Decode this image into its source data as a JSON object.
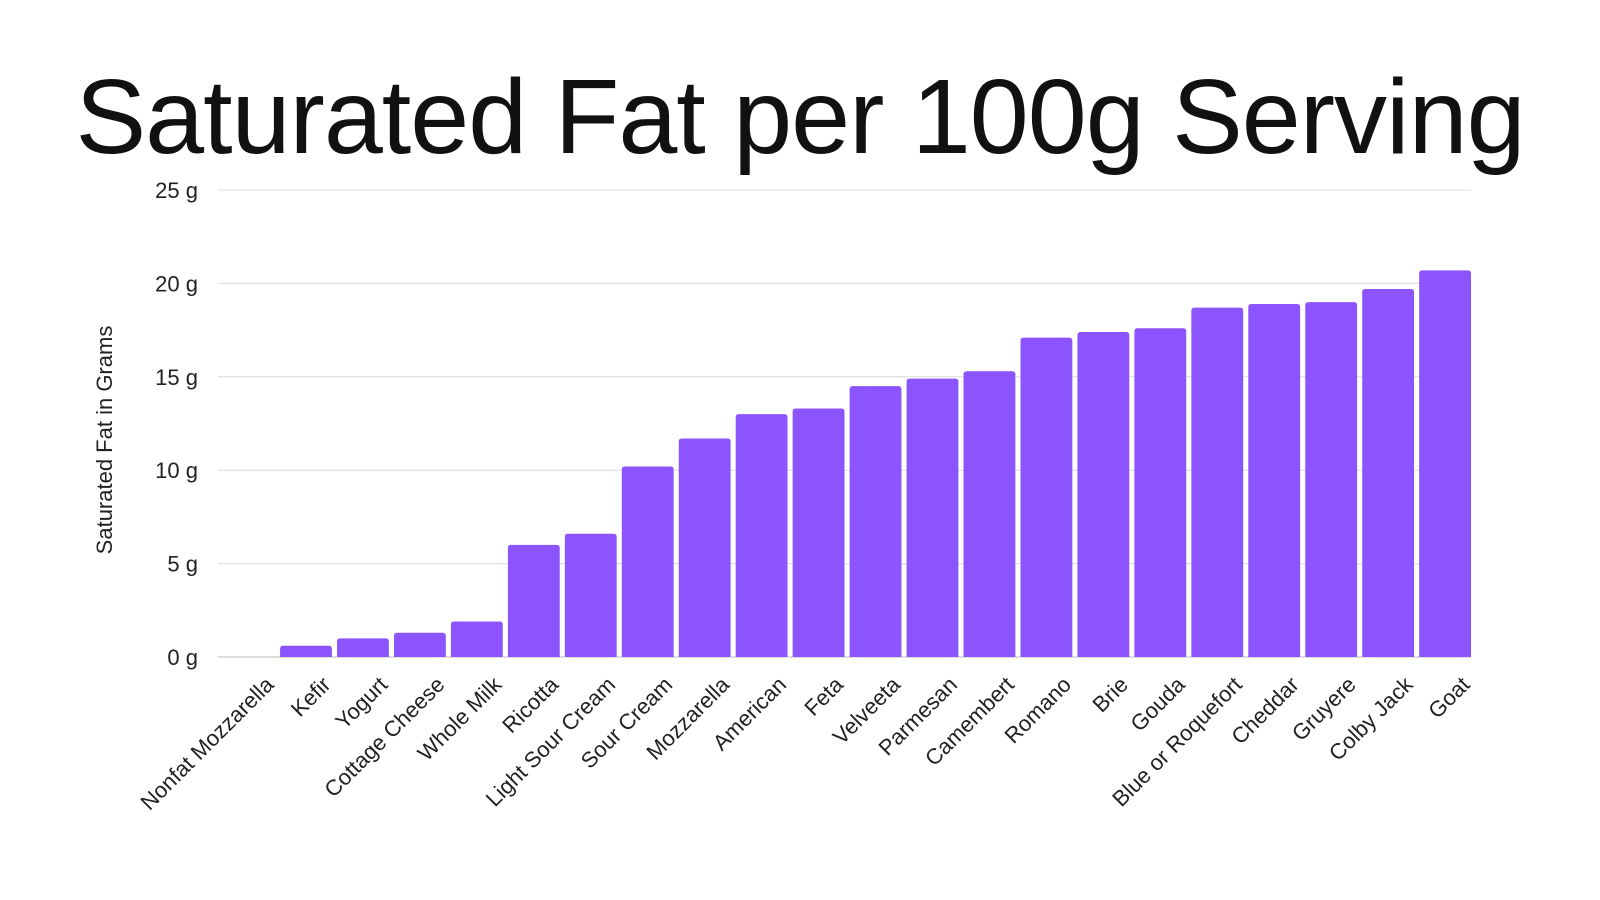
{
  "chart_data": {
    "type": "bar",
    "title": "Saturated Fat per 100g Serving",
    "xlabel": "",
    "ylabel": "Saturated Fat in Grams",
    "ylim": [
      0,
      25
    ],
    "y_ticks": [
      0,
      5,
      10,
      15,
      20,
      25
    ],
    "y_tick_labels": [
      "0 g",
      "5 g",
      "10 g",
      "15 g",
      "20 g",
      "25 g"
    ],
    "grid": true,
    "legend": "none",
    "bar_color": "#8c54fc",
    "categories": [
      "Nonfat Mozzarella",
      "Kefir",
      "Yogurt",
      "Cottage Cheese",
      "Whole Milk",
      "Ricotta",
      "Light Sour Cream",
      "Sour Cream",
      "Mozzarella",
      "American",
      "Feta",
      "Velveeta",
      "Parmesan",
      "Camembert",
      "Romano",
      "Brie",
      "Gouda",
      "Blue or Roquefort",
      "Cheddar",
      "Gruyere",
      "Colby Jack",
      "Goat"
    ],
    "values": [
      0,
      0.6,
      1.0,
      1.3,
      1.9,
      6.0,
      6.6,
      10.2,
      11.7,
      13.0,
      13.3,
      14.5,
      14.9,
      15.3,
      17.1,
      17.4,
      17.6,
      18.7,
      18.9,
      19.0,
      19.7,
      20.7
    ]
  }
}
